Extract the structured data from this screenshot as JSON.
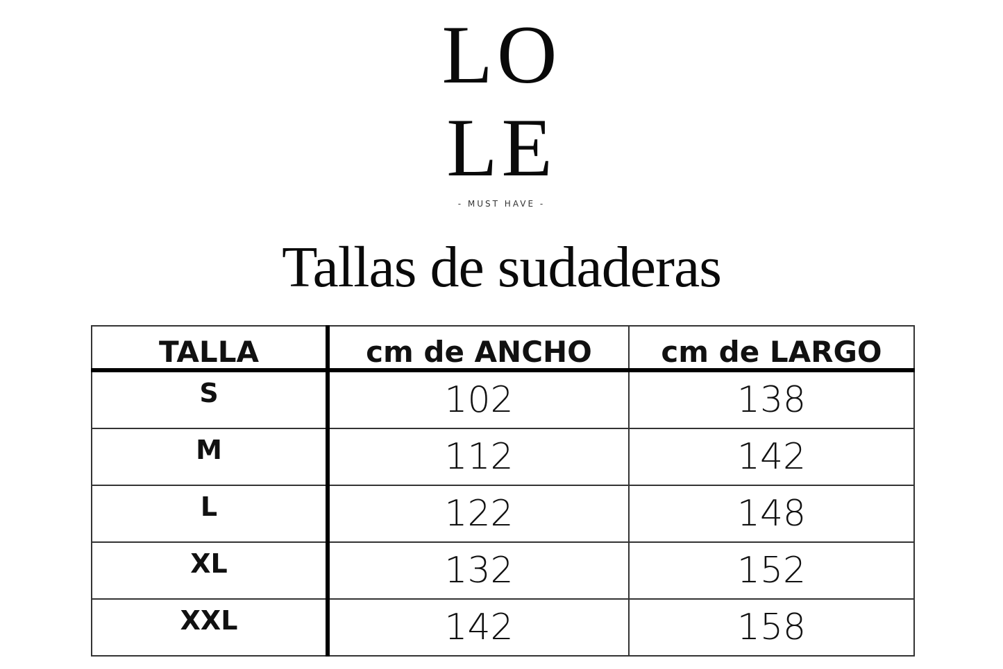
{
  "logo": {
    "line1": "LO",
    "line2": "LE",
    "tagline": "- MUST HAVE -"
  },
  "title": "Tallas de sudaderas",
  "table": {
    "headers": [
      "TALLA",
      "cm de ANCHO",
      "cm de LARGO"
    ],
    "rows": [
      [
        "S",
        "102",
        "138"
      ],
      [
        "M",
        "112",
        "142"
      ],
      [
        "L",
        "122",
        "148"
      ],
      [
        "XL",
        "132",
        "152"
      ],
      [
        "XXL",
        "142",
        "158"
      ]
    ]
  }
}
